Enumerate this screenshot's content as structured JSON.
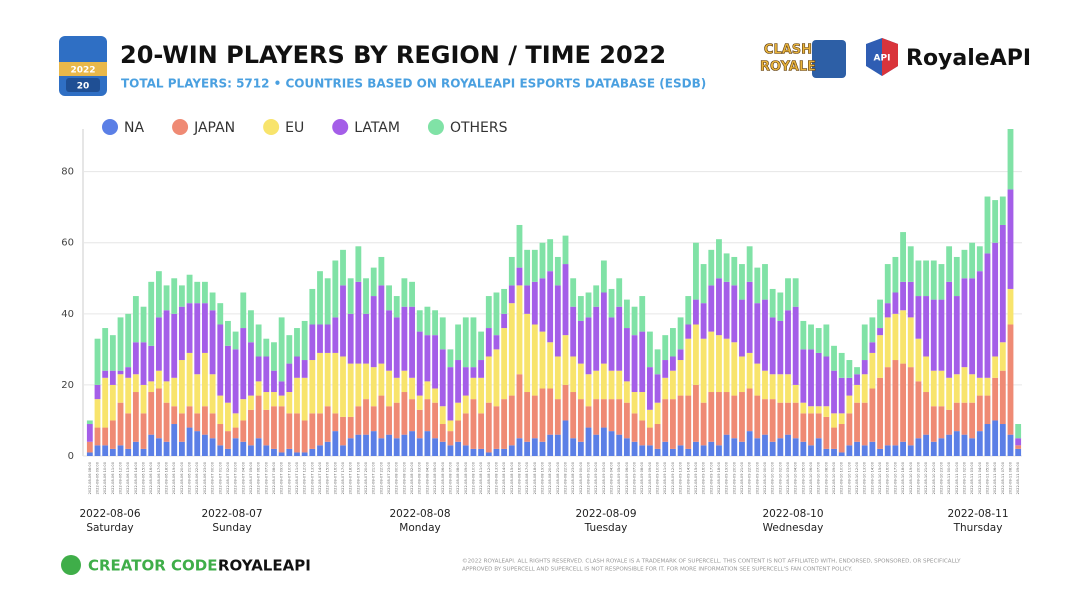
{
  "header": {
    "badge_year": "2022",
    "badge_number": "20",
    "game_logo": [
      "CLASH",
      "ROYALE"
    ],
    "brand_badge": "API",
    "brand": "RoyaleAPI"
  },
  "chart_data": {
    "type": "stacked-bar",
    "title": "20-WIN PLAYERS BY REGION / TIME 2022",
    "subtitle": "TOTAL PLAYERS: 5712 • COUNTRIES BASED ON ROYALEAPI ESPORTS DATABASE (ESDB)",
    "categories": [
      "2022-08-06 08:00",
      "2022-08-06 09:00",
      "2022-08-06 10:00",
      "2022-08-06 11:00",
      "2022-08-06 12:00",
      "2022-08-06 13:00",
      "2022-08-06 14:00",
      "2022-08-06 15:00",
      "2022-08-06 16:00",
      "2022-08-06 17:00",
      "2022-08-06 18:00",
      "2022-08-06 19:00",
      "2022-08-06 20:00",
      "2022-08-06 21:00",
      "2022-08-06 22:00",
      "2022-08-06 23:00",
      "2022-08-07 00:00",
      "2022-08-07 01:00",
      "2022-08-07 02:00",
      "2022-08-07 03:00",
      "2022-08-07 04:00",
      "2022-08-07 05:00",
      "2022-08-07 06:00",
      "2022-08-07 07:00",
      "2022-08-07 08:00",
      "2022-08-07 09:00",
      "2022-08-07 10:00",
      "2022-08-07 11:00",
      "2022-08-07 12:00",
      "2022-08-07 13:00",
      "2022-08-07 14:00",
      "2022-08-07 15:00",
      "2022-08-07 16:00",
      "2022-08-07 17:00",
      "2022-08-07 18:00",
      "2022-08-07 19:00",
      "2022-08-07 20:00",
      "2022-08-07 21:00",
      "2022-08-07 22:00",
      "2022-08-07 23:00",
      "2022-08-08 00:00",
      "2022-08-08 01:00",
      "2022-08-08 02:00",
      "2022-08-08 03:00",
      "2022-08-08 04:00",
      "2022-08-08 05:00",
      "2022-08-08 06:00",
      "2022-08-08 07:00",
      "2022-08-08 08:00",
      "2022-08-08 09:00",
      "2022-08-08 10:00",
      "2022-08-08 11:00",
      "2022-08-08 12:00",
      "2022-08-08 13:00",
      "2022-08-08 14:00",
      "2022-08-08 15:00",
      "2022-08-08 16:00",
      "2022-08-08 17:00",
      "2022-08-08 18:00",
      "2022-08-08 19:00",
      "2022-08-08 20:00",
      "2022-08-08 21:00",
      "2022-08-08 22:00",
      "2022-08-08 23:00",
      "2022-08-09 00:00",
      "2022-08-09 01:00",
      "2022-08-09 02:00",
      "2022-08-09 03:00",
      "2022-08-09 04:00",
      "2022-08-09 05:00",
      "2022-08-09 06:00",
      "2022-08-09 07:00",
      "2022-08-09 08:00",
      "2022-08-09 09:00",
      "2022-08-09 10:00",
      "2022-08-09 11:00",
      "2022-08-09 12:00",
      "2022-08-09 13:00",
      "2022-08-09 14:00",
      "2022-08-09 15:00",
      "2022-08-09 16:00",
      "2022-08-09 17:00",
      "2022-08-09 18:00",
      "2022-08-09 19:00",
      "2022-08-09 20:00",
      "2022-08-09 21:00",
      "2022-08-09 22:00",
      "2022-08-09 23:00",
      "2022-08-10 00:00",
      "2022-08-10 01:00",
      "2022-08-10 02:00",
      "2022-08-10 03:00",
      "2022-08-10 04:00",
      "2022-08-10 05:00",
      "2022-08-10 06:00",
      "2022-08-10 07:00",
      "2022-08-10 08:00",
      "2022-08-10 09:00",
      "2022-08-10 10:00",
      "2022-08-10 11:00",
      "2022-08-10 12:00",
      "2022-08-10 13:00",
      "2022-08-10 14:00",
      "2022-08-10 15:00",
      "2022-08-10 16:00",
      "2022-08-10 17:00",
      "2022-08-10 18:00",
      "2022-08-10 19:00",
      "2022-08-10 20:00",
      "2022-08-10 21:00",
      "2022-08-10 22:00",
      "2022-08-10 23:00",
      "2022-08-11 00:00",
      "2022-08-11 01:00",
      "2022-08-11 02:00",
      "2022-08-11 03:00",
      "2022-08-11 04:00",
      "2022-08-11 05:00",
      "2022-08-11 06:00",
      "2022-08-11 07:00",
      "2022-08-11 08:00",
      "2022-08-11 09:00"
    ],
    "series": [
      {
        "name": "NA",
        "color": "#5b7fe6",
        "values": [
          1,
          3,
          3,
          2,
          3,
          2,
          4,
          2,
          6,
          5,
          4,
          9,
          4,
          8,
          7,
          6,
          5,
          3,
          2,
          5,
          4,
          3,
          5,
          3,
          2,
          1,
          2,
          1,
          1,
          2,
          3,
          4,
          7,
          3,
          5,
          6,
          6,
          7,
          5,
          6,
          5,
          6,
          7,
          5,
          7,
          5,
          4,
          3,
          4,
          3,
          2,
          2,
          1,
          2,
          2,
          3,
          5,
          4,
          5,
          4,
          6,
          6,
          10,
          5,
          4,
          8,
          6,
          8,
          7,
          6,
          5,
          4,
          3,
          3,
          2,
          4,
          2,
          3,
          2,
          4,
          3,
          4,
          3,
          6,
          5,
          4,
          7,
          5,
          6,
          4,
          5,
          6,
          5,
          4,
          3,
          5,
          2,
          2,
          1,
          3,
          4,
          3,
          4,
          2,
          3,
          3,
          4,
          3,
          5,
          6,
          4,
          5,
          6,
          7,
          6,
          5,
          7,
          9,
          10,
          9,
          6,
          2
        ]
      },
      {
        "name": "JAPAN",
        "color": "#ef8a74",
        "values": [
          3,
          5,
          5,
          8,
          12,
          10,
          14,
          10,
          12,
          14,
          11,
          5,
          8,
          6,
          5,
          8,
          7,
          6,
          5,
          3,
          6,
          10,
          12,
          10,
          12,
          13,
          10,
          11,
          9,
          10,
          9,
          10,
          5,
          8,
          6,
          8,
          10,
          7,
          12,
          8,
          10,
          12,
          9,
          8,
          9,
          10,
          5,
          4,
          6,
          9,
          14,
          10,
          14,
          12,
          14,
          14,
          18,
          14,
          12,
          15,
          13,
          10,
          10,
          13,
          12,
          6,
          10,
          8,
          9,
          10,
          10,
          8,
          7,
          5,
          7,
          12,
          14,
          14,
          15,
          16,
          12,
          14,
          15,
          12,
          12,
          14,
          12,
          12,
          10,
          12,
          10,
          9,
          10,
          8,
          9,
          7,
          9,
          6,
          8,
          9,
          11,
          12,
          15,
          20,
          22,
          24,
          22,
          22,
          16,
          12,
          10,
          9,
          7,
          8,
          9,
          10,
          10,
          8,
          12,
          15,
          31,
          1
        ]
      },
      {
        "name": "EU",
        "color": "#f8e46c",
        "values": [
          0,
          8,
          14,
          10,
          8,
          10,
          5,
          8,
          3,
          5,
          6,
          8,
          15,
          15,
          11,
          15,
          11,
          8,
          8,
          4,
          6,
          4,
          4,
          5,
          4,
          3,
          6,
          10,
          12,
          15,
          17,
          15,
          17,
          17,
          15,
          12,
          10,
          11,
          9,
          10,
          7,
          6,
          6,
          4,
          5,
          4,
          5,
          3,
          5,
          5,
          6,
          10,
          13,
          16,
          20,
          26,
          25,
          22,
          20,
          16,
          13,
          12,
          14,
          10,
          10,
          9,
          8,
          10,
          8,
          8,
          6,
          6,
          8,
          5,
          6,
          6,
          8,
          10,
          16,
          17,
          18,
          17,
          16,
          15,
          15,
          10,
          10,
          9,
          8,
          7,
          8,
          8,
          5,
          3,
          2,
          2,
          3,
          4,
          3,
          5,
          5,
          8,
          10,
          12,
          14,
          13,
          15,
          14,
          12,
          10,
          10,
          10,
          9,
          8,
          10,
          8,
          5,
          5,
          6,
          8,
          10,
          0
        ]
      },
      {
        "name": "LATAM",
        "color": "#a45ee8",
        "values": [
          5,
          4,
          2,
          4,
          1,
          3,
          9,
          12,
          10,
          15,
          20,
          18,
          15,
          14,
          20,
          14,
          18,
          20,
          16,
          18,
          20,
          15,
          7,
          10,
          6,
          4,
          8,
          6,
          5,
          10,
          8,
          8,
          10,
          20,
          14,
          23,
          14,
          20,
          22,
          17,
          17,
          18,
          20,
          18,
          13,
          15,
          16,
          15,
          12,
          8,
          3,
          5,
          8,
          4,
          4,
          5,
          5,
          8,
          12,
          15,
          20,
          20,
          20,
          14,
          12,
          16,
          18,
          20,
          15,
          18,
          15,
          16,
          17,
          12,
          8,
          5,
          4,
          3,
          4,
          7,
          10,
          13,
          16,
          16,
          16,
          16,
          20,
          17,
          20,
          16,
          15,
          18,
          22,
          15,
          16,
          15,
          14,
          12,
          10,
          5,
          3,
          4,
          3,
          2,
          4,
          6,
          8,
          10,
          12,
          17,
          20,
          20,
          27,
          22,
          25,
          27,
          30,
          35,
          32,
          33,
          28,
          2
        ]
      },
      {
        "name": "OTHERS",
        "color": "#80e2a6",
        "values": [
          1,
          13,
          12,
          10,
          15,
          15,
          13,
          10,
          18,
          13,
          7,
          10,
          6,
          8,
          6,
          6,
          5,
          6,
          7,
          5,
          10,
          9,
          9,
          5,
          8,
          18,
          8,
          8,
          11,
          10,
          15,
          13,
          16,
          10,
          10,
          10,
          10,
          8,
          8,
          7,
          6,
          8,
          7,
          6,
          8,
          7,
          9,
          5,
          10,
          14,
          14,
          8,
          9,
          12,
          7,
          8,
          12,
          10,
          9,
          10,
          9,
          8,
          8,
          8,
          7,
          7,
          6,
          9,
          8,
          8,
          8,
          8,
          10,
          10,
          7,
          7,
          8,
          9,
          8,
          16,
          11,
          10,
          11,
          8,
          8,
          10,
          10,
          10,
          10,
          8,
          8,
          9,
          8,
          8,
          7,
          7,
          9,
          7,
          7,
          5,
          2,
          10,
          7,
          8,
          11,
          10,
          14,
          10,
          10,
          10,
          11,
          10,
          10,
          11,
          8,
          10,
          7,
          16,
          12,
          8,
          17,
          4
        ]
      }
    ],
    "ylim": [
      0,
      92
    ],
    "yticks": [
      0,
      20,
      40,
      60,
      80
    ],
    "grid": true,
    "day_labels": [
      {
        "date": "2022-08-06",
        "day": "Saturday"
      },
      {
        "date": "2022-08-07",
        "day": "Sunday"
      },
      {
        "date": "2022-08-08",
        "day": "Monday"
      },
      {
        "date": "2022-08-09",
        "day": "Tuesday"
      },
      {
        "date": "2022-08-10",
        "day": "Wednesday"
      },
      {
        "date": "2022-08-11",
        "day": "Thursday"
      }
    ]
  },
  "footer": {
    "creator_label": "CREATOR CODE:",
    "creator_code": "ROYALEAPI",
    "copyright": [
      "©2022 ROYALEAPI. ALL RIGHTS RESERVED. CLASH ROYALE IS A TRADEMARK OF SUPERCELL. THIS CONTENT IS NOT AFFILIATED WITH, ENDORSED, SPONSORED, OR SPECIFICALLY",
      "APPROVED BY SUPERCELL AND SUPERCELL IS NOT RESPONSIBLE FOR IT. FOR MORE INFORMATION SEE SUPERCELL'S FAN CONTENT POLICY."
    ]
  }
}
